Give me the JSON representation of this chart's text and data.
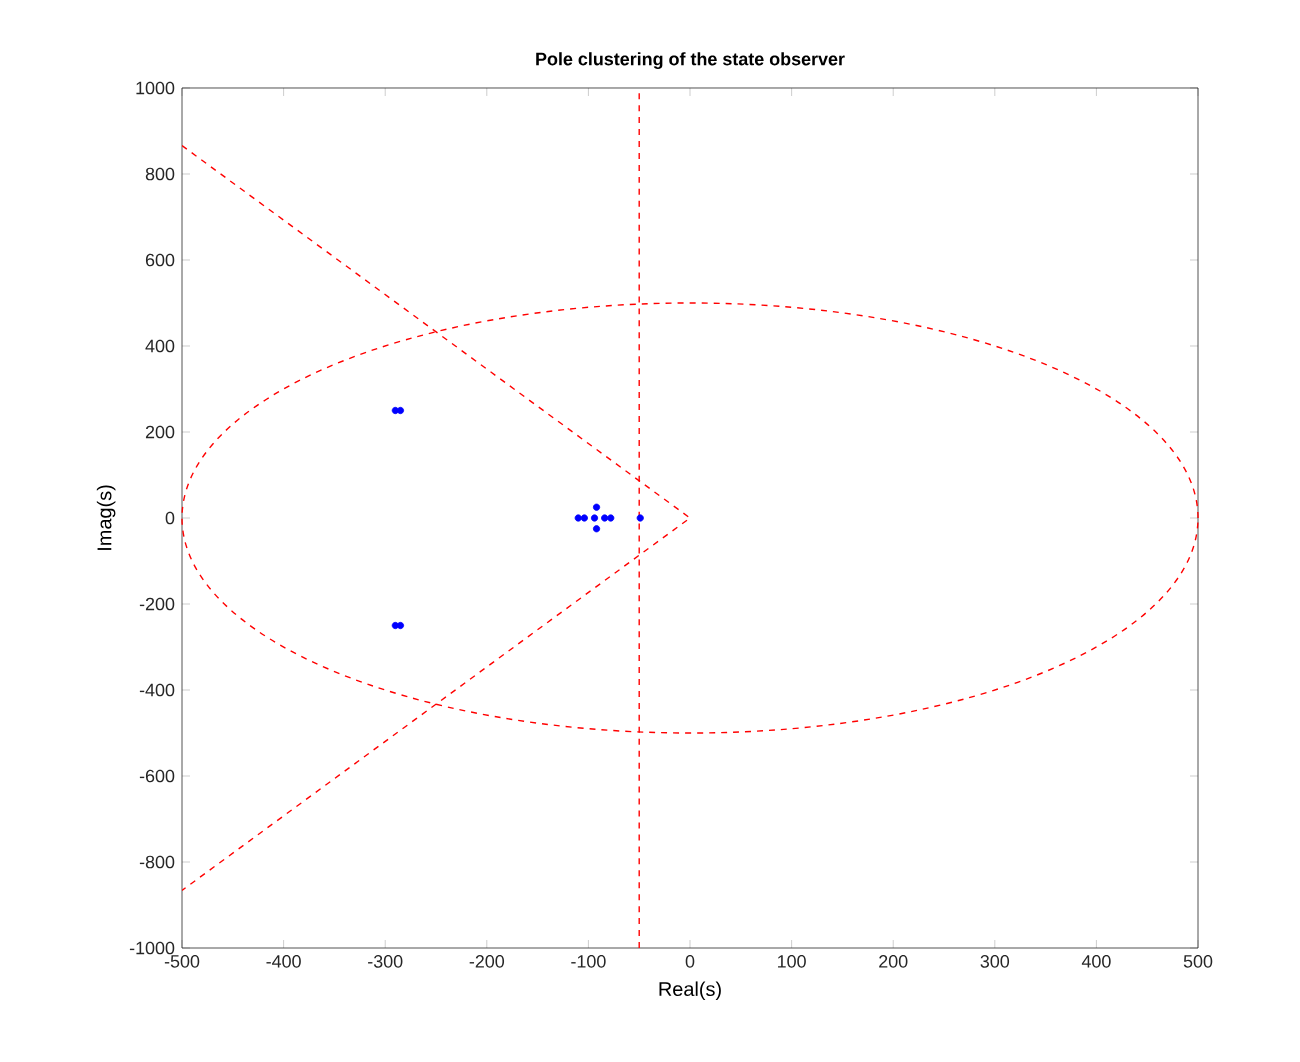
{
  "chart_data": {
    "type": "scatter",
    "title": "Pole clustering of the state observer",
    "xlabel": "Real(s)",
    "ylabel": "Imag(s)",
    "xlim": [
      -500,
      500
    ],
    "ylim": [
      -1000,
      1000
    ],
    "xticks": [
      -500,
      -400,
      -300,
      -200,
      -100,
      0,
      100,
      200,
      300,
      400,
      500
    ],
    "yticks": [
      -1000,
      -800,
      -600,
      -400,
      -200,
      0,
      200,
      400,
      600,
      800,
      1000
    ],
    "grid": false,
    "series": [
      {
        "color": "#0000ff",
        "marker": "circle",
        "x": [
          -290,
          -285,
          -290,
          -285,
          -110,
          -104,
          -94,
          -92,
          -92,
          -84,
          -78,
          -49
        ],
        "values": [
          250,
          250,
          -250,
          -250,
          0,
          0,
          0,
          25,
          -25,
          0,
          0,
          0
        ]
      },
      {
        "type": "line",
        "color": "#ff0000",
        "line_style": "dashed",
        "marker": "none",
        "x": [
          -500,
          0,
          -500
        ],
        "values": [
          866,
          0,
          -866
        ]
      }
    ],
    "ref_lines": [
      {
        "axis": "x",
        "value": -50,
        "color": "#ff0000",
        "line_style": "dashed"
      }
    ]
  }
}
